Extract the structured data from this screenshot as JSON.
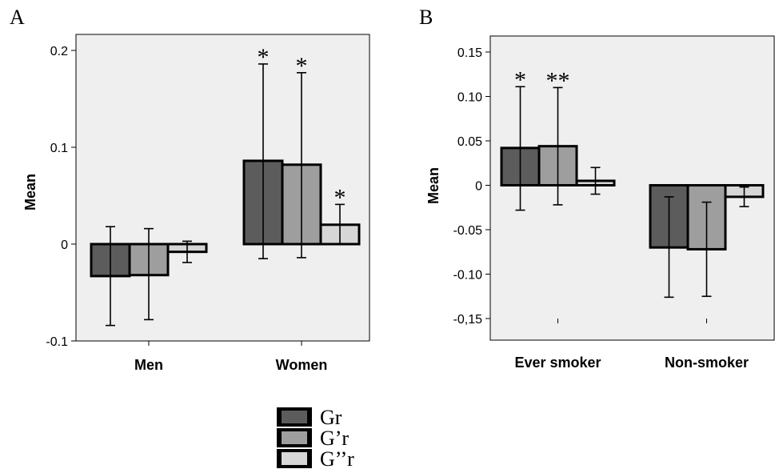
{
  "chart_data": [
    {
      "type": "bar",
      "panel_label": "A",
      "ylabel": "Mean",
      "ylim": [
        -0.1,
        0.2
      ],
      "yticks": [
        -0.1,
        0,
        0.1,
        0.2
      ],
      "ytick_labels": [
        "-0.1",
        "0",
        "0.1",
        "0.2"
      ],
      "categories": [
        "Men",
        "Women"
      ],
      "series": [
        {
          "name": "Gr",
          "values": [
            -0.033,
            0.086
          ],
          "err_low": [
            -0.084,
            -0.015
          ],
          "err_high": [
            0.018,
            0.186
          ],
          "marks": [
            "",
            "*"
          ]
        },
        {
          "name": "G’r",
          "values": [
            -0.032,
            0.082
          ],
          "err_low": [
            -0.078,
            -0.014
          ],
          "err_high": [
            0.016,
            0.177
          ],
          "marks": [
            "",
            "*"
          ]
        },
        {
          "name": "G’’r",
          "values": [
            -0.008,
            0.02
          ],
          "err_low": [
            -0.019,
            0.0
          ],
          "err_high": [
            0.003,
            0.041
          ],
          "marks": [
            "",
            "*"
          ]
        }
      ],
      "grid": false,
      "background": "#efefef"
    },
    {
      "type": "bar",
      "panel_label": "B",
      "ylabel": "Mean",
      "ylim": [
        -0.16,
        0.165
      ],
      "yticks": [
        -0.15,
        -0.1,
        -0.05,
        0,
        0.05,
        0.1,
        0.15
      ],
      "ytick_labels": [
        "-0,15",
        "-0.10",
        "-0.05",
        "0",
        "0.05",
        "0.10",
        "0.15"
      ],
      "categories": [
        "Ever smoker",
        "Non-smoker"
      ],
      "series": [
        {
          "name": "Gr",
          "values": [
            0.042,
            -0.07
          ],
          "err_low": [
            -0.028,
            -0.126
          ],
          "err_high": [
            0.111,
            -0.013
          ],
          "marks": [
            "*",
            ""
          ]
        },
        {
          "name": "G’r",
          "values": [
            0.044,
            -0.072
          ],
          "err_low": [
            -0.022,
            -0.125
          ],
          "err_high": [
            0.11,
            -0.019
          ],
          "marks": [
            "**",
            ""
          ]
        },
        {
          "name": "G’’r",
          "values": [
            0.005,
            -0.013
          ],
          "err_low": [
            -0.01,
            -0.024
          ],
          "err_high": [
            0.02,
            -0.002
          ],
          "marks": [
            "",
            ""
          ]
        }
      ],
      "grid": false,
      "background": "#efefef"
    }
  ],
  "legend": {
    "placement": "bottom-center",
    "items": [
      {
        "label": "Gr",
        "color": "#5c5c5c"
      },
      {
        "label": "G’r",
        "color": "#9e9e9e"
      },
      {
        "label": "G’’r",
        "color": "#d6d6d6"
      }
    ]
  },
  "colors": {
    "series": [
      "#5c5c5c",
      "#9e9e9e",
      "#d6d6d6"
    ],
    "plot_background": "#efefef",
    "edge": "#000000"
  }
}
